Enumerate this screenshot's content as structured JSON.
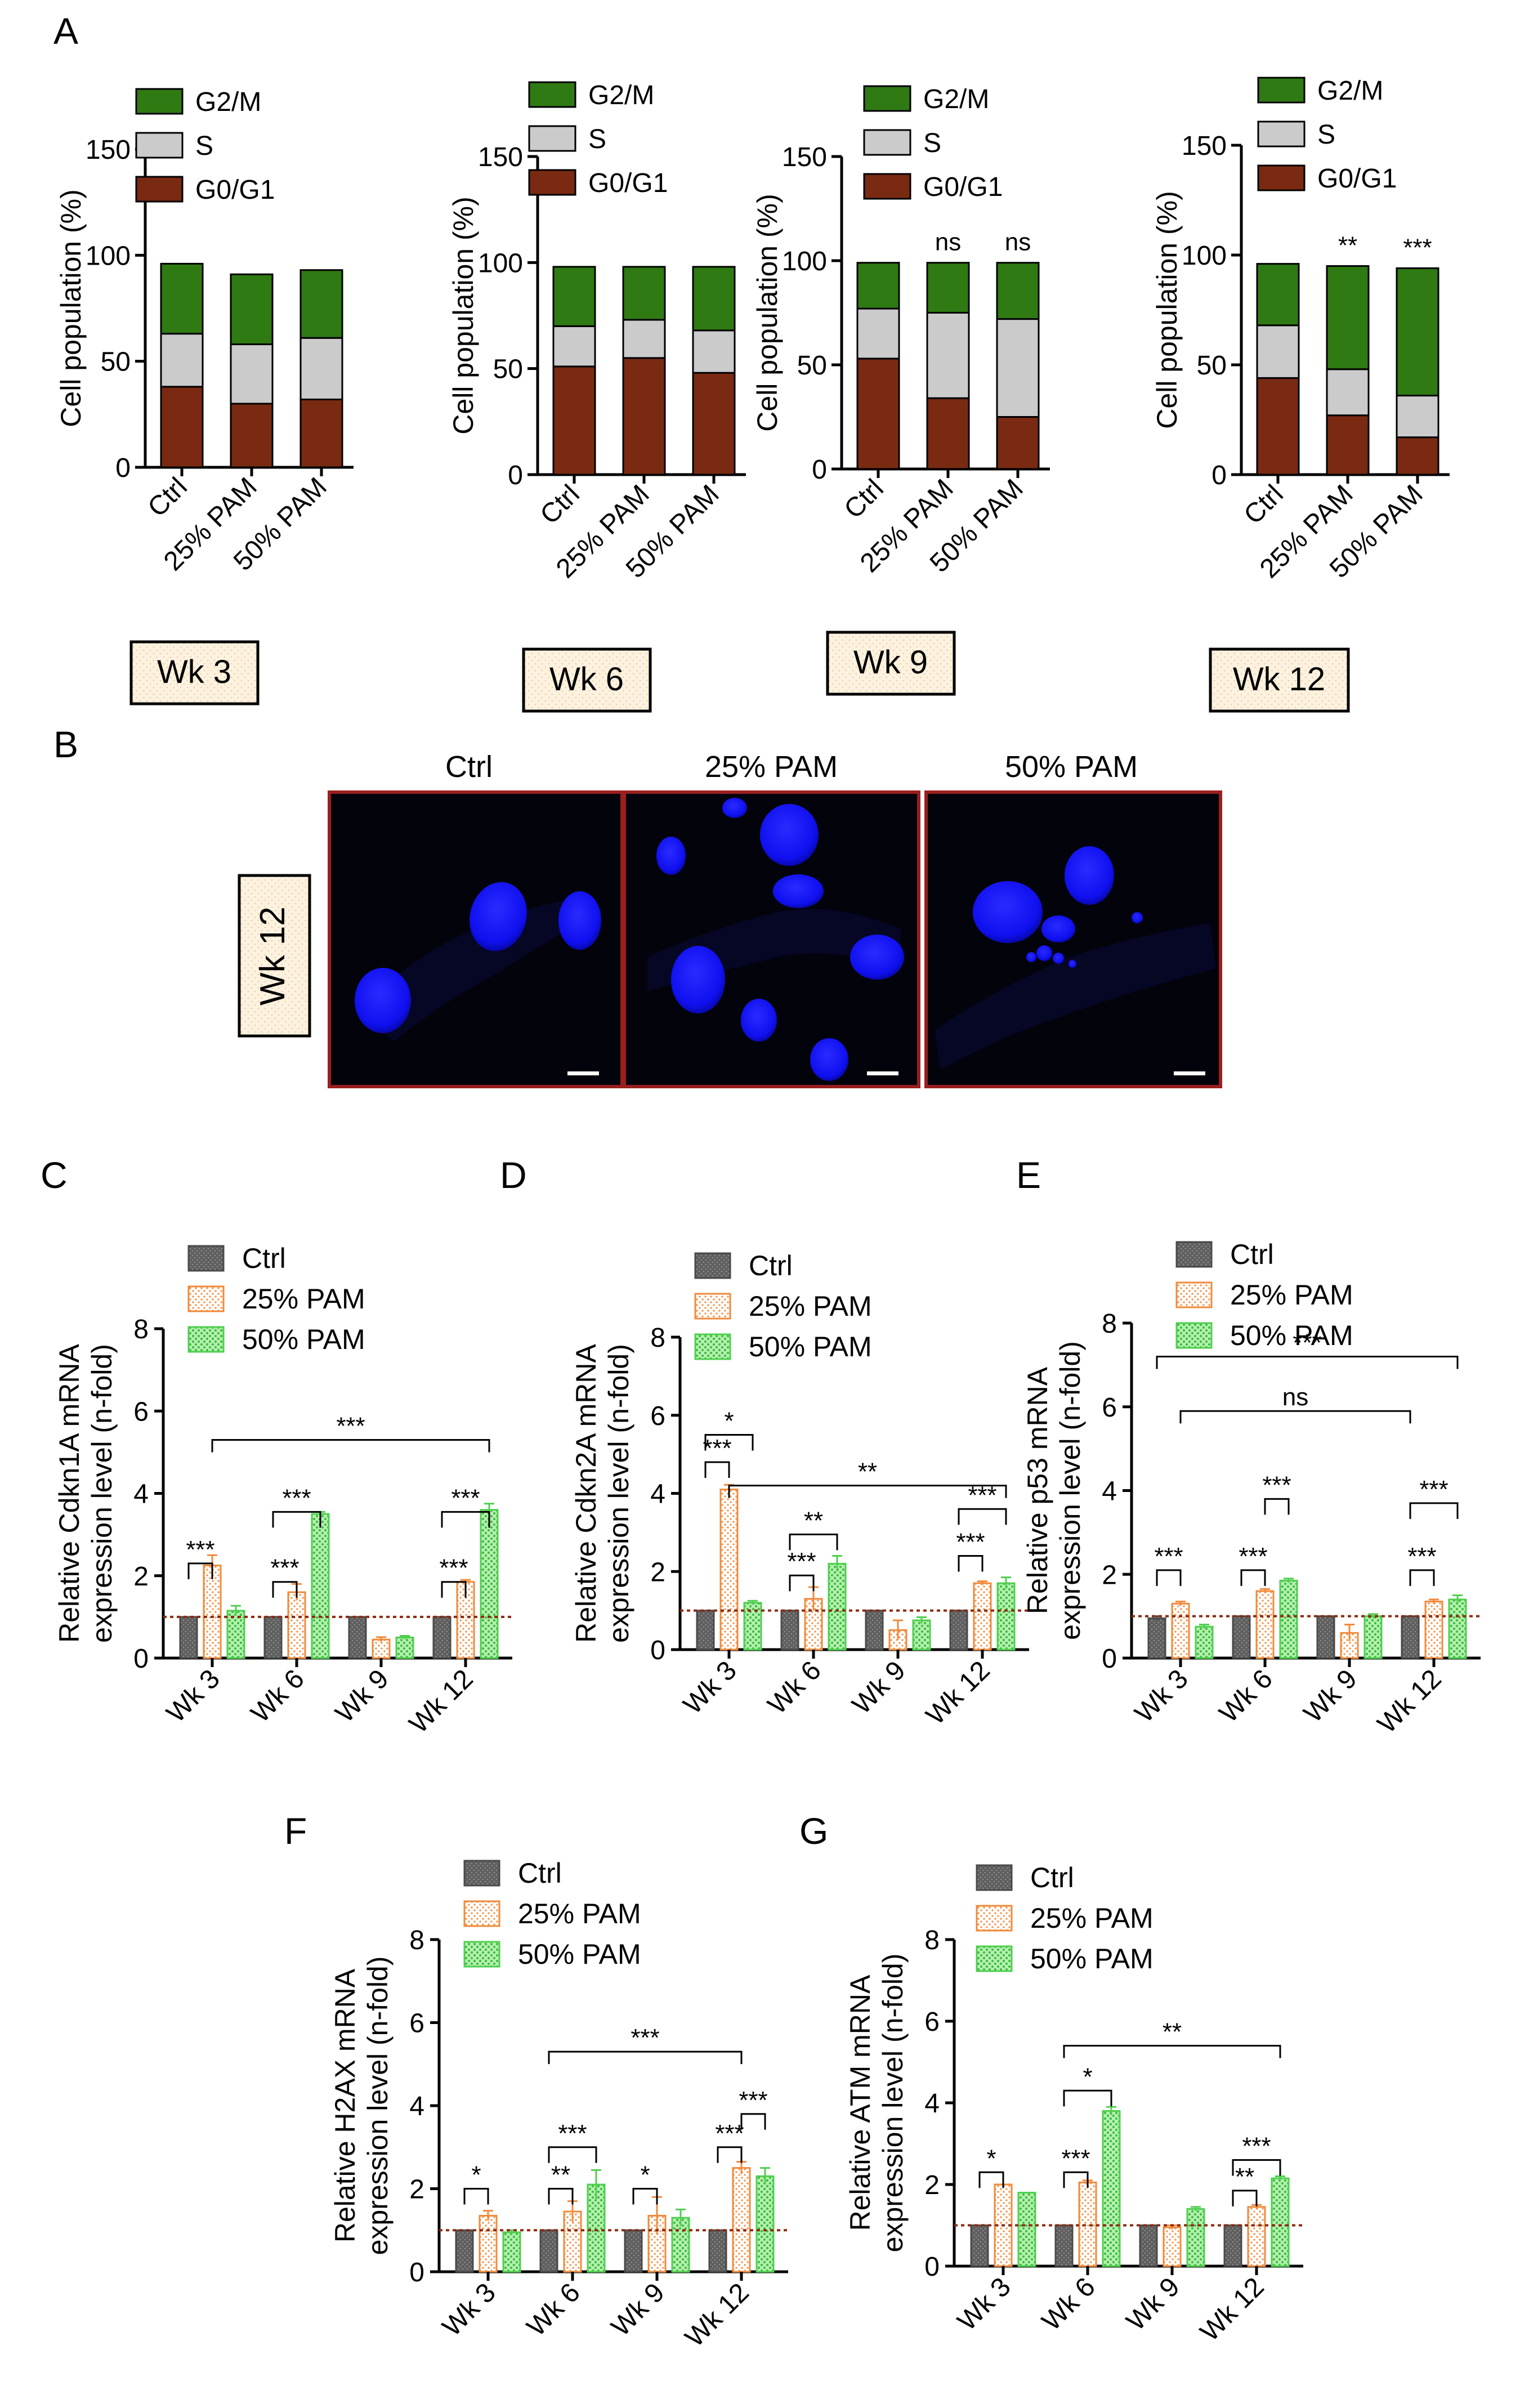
{
  "panel_letters": {
    "A": "A",
    "B": "B",
    "C": "C",
    "D": "D",
    "E": "E",
    "F": "F",
    "G": "G"
  },
  "colors": {
    "g2m": "#2f7a12",
    "s": "#cbcbcb",
    "g0g1": "#7a2a12",
    "ctrl": "#6b6b6b",
    "pam25": "#f39a56",
    "pam50": "#66d666",
    "baseline": "#8b2a0f",
    "image_frame": "#9a1f1f",
    "nucleus": "#1414ff",
    "tag_fill": "#fbefd8"
  },
  "chart_data": [
    {
      "type": "bar",
      "stacked": true,
      "panel": "A",
      "categories": [
        "Ctrl",
        "25% PAM",
        "50% PAM"
      ],
      "series": [
        {
          "name": "G0/G1",
          "values": [
            38,
            30,
            32
          ]
        },
        {
          "name": "S",
          "values": [
            25,
            28,
            29
          ]
        },
        {
          "name": "G2/M",
          "values": [
            33,
            33,
            32
          ]
        }
      ],
      "ylabel": "Cell population (%)",
      "ylim": [
        0,
        150
      ],
      "yticks": [
        0,
        50,
        100,
        150
      ],
      "legend": [
        "G2/M",
        "S",
        "G0/G1"
      ],
      "week_label": "Wk 3",
      "sig": [
        "",
        "",
        ""
      ]
    },
    {
      "type": "bar",
      "stacked": true,
      "panel": "A",
      "categories": [
        "Ctrl",
        "25% PAM",
        "50% PAM"
      ],
      "series": [
        {
          "name": "G0/G1",
          "values": [
            51,
            55,
            48
          ]
        },
        {
          "name": "S",
          "values": [
            19,
            18,
            20
          ]
        },
        {
          "name": "G2/M",
          "values": [
            28,
            25,
            30
          ]
        }
      ],
      "ylabel": "Cell population (%)",
      "ylim": [
        0,
        150
      ],
      "yticks": [
        0,
        50,
        100,
        150
      ],
      "legend": [
        "G2/M",
        "S",
        "G0/G1"
      ],
      "week_label": "Wk 6",
      "sig": [
        "",
        "",
        ""
      ]
    },
    {
      "type": "bar",
      "stacked": true,
      "panel": "A",
      "categories": [
        "Ctrl",
        "25% PAM",
        "50% PAM"
      ],
      "series": [
        {
          "name": "G0/G1",
          "values": [
            53,
            34,
            25
          ]
        },
        {
          "name": "S",
          "values": [
            24,
            41,
            47
          ]
        },
        {
          "name": "G2/M",
          "values": [
            22,
            24,
            27
          ]
        }
      ],
      "ylabel": "Cell population (%)",
      "ylim": [
        0,
        150
      ],
      "yticks": [
        0,
        50,
        100,
        150
      ],
      "legend": [
        "G2/M",
        "S",
        "G0/G1"
      ],
      "week_label": "Wk 9",
      "sig": [
        "",
        "ns",
        "ns"
      ]
    },
    {
      "type": "bar",
      "stacked": true,
      "panel": "A",
      "categories": [
        "Ctrl",
        "25% PAM",
        "50% PAM"
      ],
      "series": [
        {
          "name": "G0/G1",
          "values": [
            44,
            27,
            17
          ]
        },
        {
          "name": "S",
          "values": [
            24,
            21,
            19
          ]
        },
        {
          "name": "G2/M",
          "values": [
            28,
            47,
            58
          ]
        }
      ],
      "ylabel": "Cell population (%)",
      "ylim": [
        0,
        150
      ],
      "yticks": [
        0,
        50,
        100,
        150
      ],
      "legend": [
        "G2/M",
        "S",
        "G0/G1"
      ],
      "week_label": "Wk 12",
      "sig": [
        "",
        "**",
        "***"
      ]
    },
    {
      "type": "bar",
      "panel": "C",
      "categories": [
        "Wk 3",
        "Wk 6",
        "Wk 9",
        "Wk 12"
      ],
      "series": [
        {
          "name": "Ctrl",
          "values": [
            1.0,
            1.0,
            1.0,
            1.0
          ]
        },
        {
          "name": "25% PAM",
          "values": [
            2.25,
            1.6,
            0.45,
            1.85
          ]
        },
        {
          "name": "50% PAM",
          "values": [
            1.15,
            3.5,
            0.5,
            3.6
          ]
        }
      ],
      "errors": [
        [
          0.02,
          0.02,
          0.02,
          0.02
        ],
        [
          0.25,
          0.2,
          0.06,
          0.05
        ],
        [
          0.12,
          0.05,
          0.04,
          0.15
        ]
      ],
      "ylabel": "Relative Cdkn1A mRNA\nexpression level (n-fold)",
      "ylim": [
        0,
        8
      ],
      "yticks": [
        0,
        2,
        4,
        6,
        8
      ],
      "baseline": 1
    },
    {
      "type": "bar",
      "panel": "D",
      "categories": [
        "Wk 3",
        "Wk 6",
        "Wk 9",
        "Wk 12"
      ],
      "series": [
        {
          "name": "Ctrl",
          "values": [
            1.0,
            1.0,
            1.0,
            1.0
          ]
        },
        {
          "name": "25% PAM",
          "values": [
            4.1,
            1.3,
            0.5,
            1.7
          ]
        },
        {
          "name": "50% PAM",
          "values": [
            1.2,
            2.2,
            0.75,
            1.7
          ]
        }
      ],
      "errors": [
        [
          0.02,
          0.02,
          0.02,
          0.02
        ],
        [
          0.12,
          0.3,
          0.25,
          0.05
        ],
        [
          0.05,
          0.2,
          0.08,
          0.15
        ]
      ],
      "ylabel": "Relative Cdkn2A mRNA\nexpression level (n-fold)",
      "ylim": [
        0,
        8
      ],
      "yticks": [
        0,
        2,
        4,
        6,
        8
      ],
      "baseline": 1
    },
    {
      "type": "bar",
      "panel": "E",
      "categories": [
        "Wk 3",
        "Wk 6",
        "Wk 9",
        "Wk 12"
      ],
      "series": [
        {
          "name": "Ctrl",
          "values": [
            0.95,
            1.0,
            1.0,
            1.0
          ]
        },
        {
          "name": "25% PAM",
          "values": [
            1.3,
            1.6,
            0.6,
            1.35
          ]
        },
        {
          "name": "50% PAM",
          "values": [
            0.75,
            1.85,
            1.0,
            1.4
          ]
        }
      ],
      "errors": [
        [
          0.05,
          0.02,
          0.02,
          0.02
        ],
        [
          0.05,
          0.05,
          0.2,
          0.05
        ],
        [
          0.05,
          0.05,
          0.05,
          0.1
        ]
      ],
      "ylabel": "Relative p53 mRNA\nexpression level (n-fold)",
      "ylim": [
        0,
        8
      ],
      "yticks": [
        0,
        2,
        4,
        6,
        8
      ],
      "baseline": 1
    },
    {
      "type": "bar",
      "panel": "F",
      "categories": [
        "Wk 3",
        "Wk 6",
        "Wk 9",
        "Wk 12"
      ],
      "series": [
        {
          "name": "Ctrl",
          "values": [
            1.0,
            1.0,
            1.0,
            1.0
          ]
        },
        {
          "name": "25% PAM",
          "values": [
            1.35,
            1.45,
            1.35,
            2.5
          ]
        },
        {
          "name": "50% PAM",
          "values": [
            0.95,
            2.1,
            1.3,
            2.3
          ]
        }
      ],
      "errors": [
        [
          0.02,
          0.02,
          0.02,
          0.02
        ],
        [
          0.12,
          0.25,
          0.45,
          0.15
        ],
        [
          0.05,
          0.35,
          0.2,
          0.2
        ]
      ],
      "ylabel": "Relative H2AX mRNA\nexpression level (n-fold)",
      "ylim": [
        0,
        8
      ],
      "yticks": [
        0,
        2,
        4,
        6,
        8
      ],
      "baseline": 1
    },
    {
      "type": "bar",
      "panel": "G",
      "categories": [
        "Wk 3",
        "Wk 6",
        "Wk 9",
        "Wk 12"
      ],
      "series": [
        {
          "name": "Ctrl",
          "values": [
            1.0,
            1.0,
            1.0,
            1.0
          ]
        },
        {
          "name": "25% PAM",
          "values": [
            2.0,
            2.05,
            0.95,
            1.45
          ]
        },
        {
          "name": "50% PAM",
          "values": [
            1.8,
            3.8,
            1.4,
            2.15
          ]
        }
      ],
      "errors": [
        [
          0.02,
          0.02,
          0.02,
          0.02
        ],
        [
          0.03,
          0.05,
          0.05,
          0.05
        ],
        [
          0.03,
          0.1,
          0.05,
          0.05
        ]
      ],
      "ylabel": "Relative ATM mRNA\nexpression level (n-fold)",
      "ylim": [
        0,
        8
      ],
      "yticks": [
        0,
        2,
        4,
        6,
        8
      ],
      "baseline": 1
    }
  ],
  "legend_text": {
    "ctrl": "Ctrl",
    "pam25": "25% PAM",
    "pam50": "50% PAM"
  },
  "sig_text": {
    "C": [
      "***",
      "***",
      "***",
      "***",
      "***",
      "***"
    ],
    "D": [
      "*",
      "***",
      "**",
      "***",
      "**",
      "***",
      "***"
    ],
    "E": [
      "***",
      "ns",
      "***",
      "***",
      "***",
      "***",
      "***"
    ],
    "F": [
      "***",
      "*",
      "***",
      "**",
      "*",
      "***",
      "***"
    ],
    "G": [
      "**",
      "*",
      "***",
      "*",
      "**",
      "***"
    ]
  },
  "panelB": {
    "col_titles": [
      "Ctrl",
      "25% PAM",
      "50% PAM"
    ],
    "row_label": "Wk 12"
  }
}
